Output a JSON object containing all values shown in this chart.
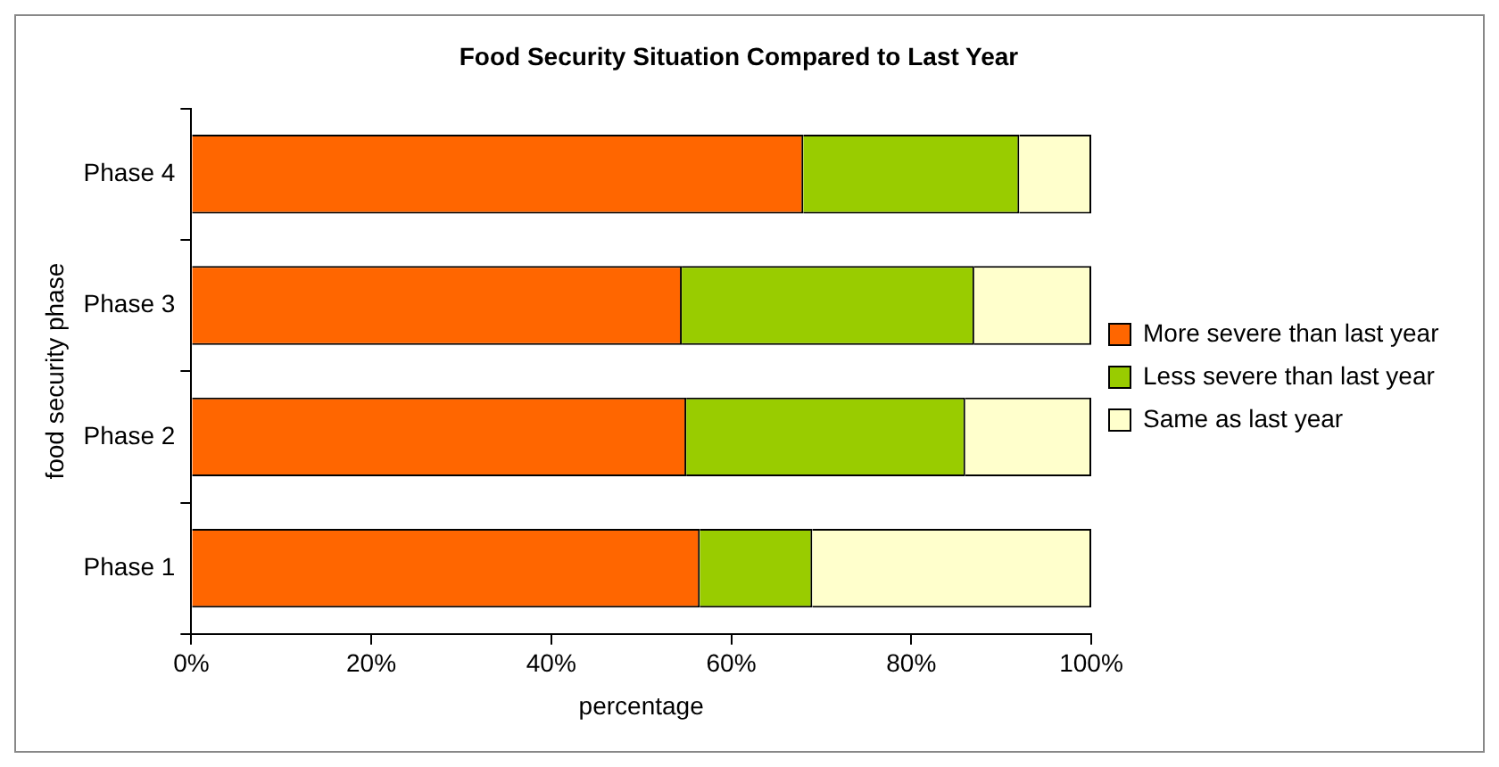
{
  "chart_data": {
    "type": "bar",
    "orientation": "horizontal",
    "stacked": true,
    "title": "Food Security Situation Compared to Last Year",
    "xlabel": "percentage",
    "ylabel": "food security phase",
    "categories": [
      "Phase 4",
      "Phase 3",
      "Phase 2",
      "Phase 1"
    ],
    "series": [
      {
        "name": "More severe than last year",
        "color": "#ff6600",
        "values": [
          68,
          54.5,
          55,
          56.5
        ]
      },
      {
        "name": "Less severe than last year",
        "color": "#99cc00",
        "values": [
          24,
          32.5,
          31,
          12.5
        ]
      },
      {
        "name": "Same as last year",
        "color": "#ffffcc",
        "values": [
          8,
          13,
          14,
          31
        ]
      }
    ],
    "xlim": [
      0,
      100
    ],
    "xticks": [
      {
        "value": 0,
        "label": "0%"
      },
      {
        "value": 20,
        "label": "20%"
      },
      {
        "value": 40,
        "label": "40%"
      },
      {
        "value": 60,
        "label": "60%"
      },
      {
        "value": 80,
        "label": "80%"
      },
      {
        "value": 100,
        "label": "100%"
      }
    ],
    "grid": false,
    "legend": "right"
  }
}
